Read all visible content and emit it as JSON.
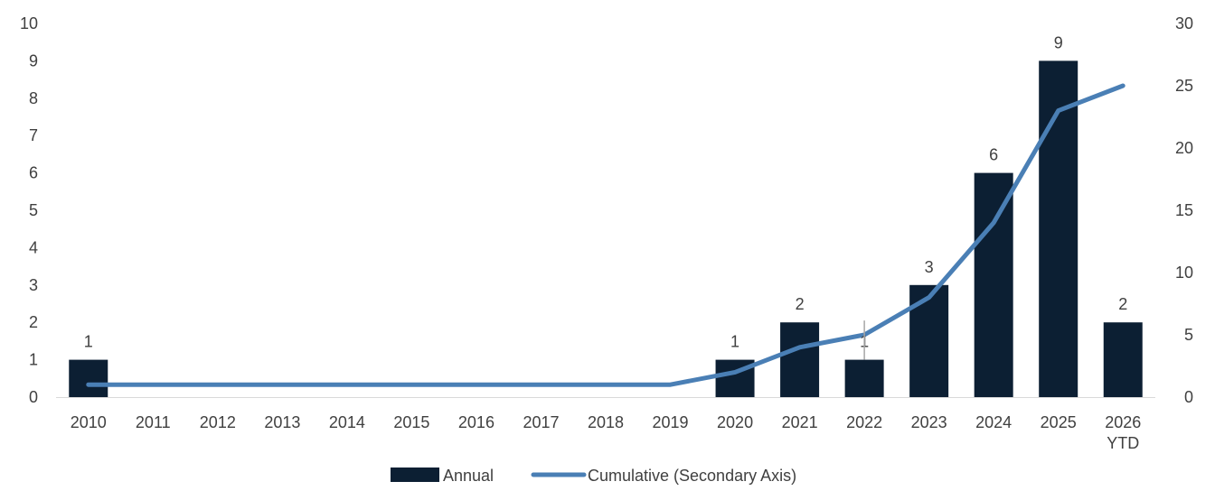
{
  "chart_data": {
    "type": "bar",
    "categories": [
      "2010",
      "2011",
      "2012",
      "2013",
      "2014",
      "2015",
      "2016",
      "2017",
      "2018",
      "2019",
      "2020",
      "2021",
      "2022",
      "2023",
      "2024",
      "2025",
      "2026\nYTD"
    ],
    "series": [
      {
        "name": "Annual",
        "type": "bar",
        "axis": "primary",
        "color": "#0c1f33",
        "values": [
          1,
          0,
          0,
          0,
          0,
          0,
          0,
          0,
          0,
          0,
          1,
          2,
          1,
          3,
          6,
          9,
          2
        ],
        "data_labels": [
          "1",
          "",
          "",
          "",
          "",
          "",
          "",
          "",
          "",
          "",
          "1",
          "2",
          "1",
          "3",
          "6",
          "9",
          "2"
        ]
      },
      {
        "name": "Cumulative (Secondary Axis)",
        "type": "line",
        "axis": "secondary",
        "color": "#4a7fb5",
        "values": [
          1,
          1,
          1,
          1,
          1,
          1,
          1,
          1,
          1,
          1,
          2,
          4,
          5,
          8,
          14,
          23,
          25
        ]
      }
    ],
    "y_primary": {
      "min": 0,
      "max": 10,
      "step": 1
    },
    "y_secondary": {
      "min": 0,
      "max": 30,
      "step": 5
    },
    "grid": false,
    "legend_position": "bottom"
  }
}
